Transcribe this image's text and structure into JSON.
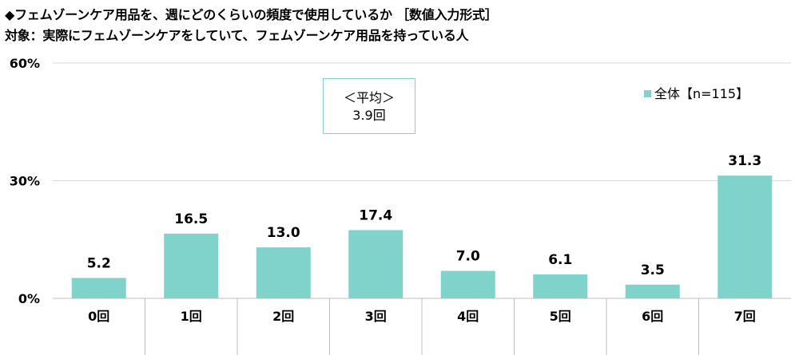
{
  "title": "◆フェムゾーンケア用品を、週にどのくらいの頻度で使用しているか ［数値入力形式］",
  "subtitle": "対象：実際にフェムゾーンケアをしていて、フェムゾーンケア用品を持っている人",
  "average": {
    "label": "＜平均＞",
    "value": "3.9回"
  },
  "colors": {
    "bar": "#80d3cb",
    "grid": "#d9d9d9",
    "axis": "#bfbfbf"
  },
  "chart_data": {
    "type": "bar",
    "categories": [
      "0回",
      "1回",
      "2回",
      "3回",
      "4回",
      "5回",
      "6回",
      "7回"
    ],
    "series": [
      {
        "name": "全体【n=115】",
        "values": [
          5.2,
          16.5,
          13.0,
          17.4,
          7.0,
          6.1,
          3.5,
          31.3
        ]
      }
    ],
    "data_labels": [
      "5.2",
      "16.5",
      "13.0",
      "17.4",
      "7.0",
      "6.1",
      "3.5",
      "31.3"
    ],
    "yticks": [
      "0%",
      "30%",
      "60%"
    ],
    "ytick_values": [
      0,
      30,
      60
    ],
    "ylim": [
      0,
      60
    ],
    "grid": true,
    "legend_position": "top-right"
  }
}
